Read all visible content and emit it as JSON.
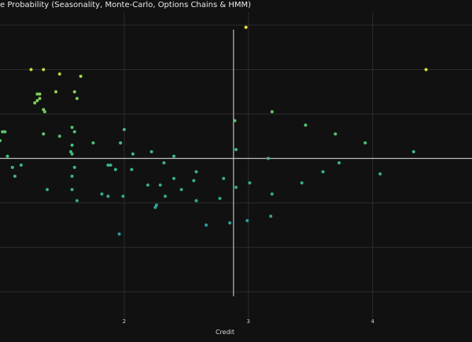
{
  "chart_data": {
    "type": "scatter",
    "title": "e Probability (Seasonality, Monte-Carlo, Options Chains & HMM)",
    "xlabel": "Credit",
    "ylabel": "",
    "xlim": [
      1.0,
      4.8
    ],
    "ylim": [
      -0.72,
      0.66
    ],
    "x_ticks": [
      2,
      3,
      4
    ],
    "grid": true,
    "legend": "none",
    "colorscale": [
      "#3a5fa0",
      "#2e9b9b",
      "#3fbf7f",
      "#9bd34a",
      "#f6e13a"
    ],
    "reference_lines": {
      "vertical_x": 2.88,
      "horizontal_y": 0.0
    },
    "points": [
      {
        "x": 2.98,
        "y": 0.59,
        "c": 1.0
      },
      {
        "x": 4.43,
        "y": 0.4,
        "c": 0.92
      },
      {
        "x": 1.35,
        "y": 0.4,
        "c": 0.85
      },
      {
        "x": 1.25,
        "y": 0.4,
        "c": 0.85
      },
      {
        "x": 1.48,
        "y": 0.38,
        "c": 0.8
      },
      {
        "x": 1.65,
        "y": 0.37,
        "c": 0.78
      },
      {
        "x": 1.32,
        "y": 0.29,
        "c": 0.7
      },
      {
        "x": 1.32,
        "y": 0.27,
        "c": 0.7
      },
      {
        "x": 1.3,
        "y": 0.26,
        "c": 0.68
      },
      {
        "x": 1.28,
        "y": 0.25,
        "c": 0.68
      },
      {
        "x": 1.35,
        "y": 0.22,
        "c": 0.66
      },
      {
        "x": 1.36,
        "y": 0.21,
        "c": 0.62
      },
      {
        "x": 1.45,
        "y": 0.3,
        "c": 0.72
      },
      {
        "x": 1.6,
        "y": 0.3,
        "c": 0.7
      },
      {
        "x": 1.62,
        "y": 0.27,
        "c": 0.68
      },
      {
        "x": 1.3,
        "y": 0.29,
        "c": 0.66
      },
      {
        "x": 1.35,
        "y": 0.11,
        "c": 0.6
      },
      {
        "x": 1.48,
        "y": 0.1,
        "c": 0.55
      },
      {
        "x": 1.6,
        "y": 0.12,
        "c": 0.55
      },
      {
        "x": 3.19,
        "y": 0.21,
        "c": 0.62
      },
      {
        "x": 2.89,
        "y": 0.17,
        "c": 0.58
      },
      {
        "x": 3.46,
        "y": 0.15,
        "c": 0.56
      },
      {
        "x": 3.7,
        "y": 0.11,
        "c": 0.55
      },
      {
        "x": 3.94,
        "y": 0.07,
        "c": 0.52
      },
      {
        "x": 4.33,
        "y": 0.03,
        "c": 0.48
      },
      {
        "x": 2.9,
        "y": 0.04,
        "c": 0.46
      },
      {
        "x": 3.16,
        "y": 0.0,
        "c": 0.44
      },
      {
        "x": 3.73,
        "y": -0.02,
        "c": 0.42
      },
      {
        "x": 3.6,
        "y": -0.06,
        "c": 0.4
      },
      {
        "x": 4.06,
        "y": -0.07,
        "c": 0.38
      },
      {
        "x": 1.02,
        "y": 0.12,
        "c": 0.58
      },
      {
        "x": 1.04,
        "y": 0.12,
        "c": 0.58
      },
      {
        "x": 1.0,
        "y": 0.08,
        "c": 0.56
      },
      {
        "x": 1.06,
        "y": 0.01,
        "c": 0.5
      },
      {
        "x": 1.1,
        "y": -0.04,
        "c": 0.45
      },
      {
        "x": 1.17,
        "y": -0.03,
        "c": 0.45
      },
      {
        "x": 1.12,
        "y": -0.08,
        "c": 0.42
      },
      {
        "x": 1.58,
        "y": 0.14,
        "c": 0.55
      },
      {
        "x": 1.58,
        "y": 0.06,
        "c": 0.52
      },
      {
        "x": 1.57,
        "y": 0.03,
        "c": 0.5
      },
      {
        "x": 1.58,
        "y": 0.02,
        "c": 0.48
      },
      {
        "x": 1.6,
        "y": -0.04,
        "c": 0.44
      },
      {
        "x": 1.58,
        "y": -0.08,
        "c": 0.42
      },
      {
        "x": 1.75,
        "y": 0.07,
        "c": 0.52
      },
      {
        "x": 1.97,
        "y": 0.07,
        "c": 0.5
      },
      {
        "x": 2.0,
        "y": 0.13,
        "c": 0.5
      },
      {
        "x": 2.07,
        "y": 0.02,
        "c": 0.46
      },
      {
        "x": 2.22,
        "y": 0.03,
        "c": 0.46
      },
      {
        "x": 2.4,
        "y": 0.01,
        "c": 0.45
      },
      {
        "x": 1.87,
        "y": -0.03,
        "c": 0.43
      },
      {
        "x": 1.89,
        "y": -0.03,
        "c": 0.43
      },
      {
        "x": 1.93,
        "y": -0.05,
        "c": 0.42
      },
      {
        "x": 2.06,
        "y": -0.05,
        "c": 0.42
      },
      {
        "x": 2.32,
        "y": -0.02,
        "c": 0.42
      },
      {
        "x": 2.58,
        "y": -0.06,
        "c": 0.4
      },
      {
        "x": 2.4,
        "y": -0.09,
        "c": 0.38
      },
      {
        "x": 2.56,
        "y": -0.1,
        "c": 0.38
      },
      {
        "x": 2.8,
        "y": -0.09,
        "c": 0.38
      },
      {
        "x": 3.01,
        "y": -0.11,
        "c": 0.36
      },
      {
        "x": 3.43,
        "y": -0.11,
        "c": 0.36
      },
      {
        "x": 2.19,
        "y": -0.12,
        "c": 0.36
      },
      {
        "x": 2.29,
        "y": -0.12,
        "c": 0.36
      },
      {
        "x": 2.46,
        "y": -0.14,
        "c": 0.35
      },
      {
        "x": 1.58,
        "y": -0.14,
        "c": 0.38
      },
      {
        "x": 1.38,
        "y": -0.14,
        "c": 0.38
      },
      {
        "x": 1.82,
        "y": -0.16,
        "c": 0.36
      },
      {
        "x": 1.87,
        "y": -0.17,
        "c": 0.35
      },
      {
        "x": 1.99,
        "y": -0.17,
        "c": 0.35
      },
      {
        "x": 2.33,
        "y": -0.17,
        "c": 0.34
      },
      {
        "x": 1.62,
        "y": -0.19,
        "c": 0.34
      },
      {
        "x": 2.58,
        "y": -0.19,
        "c": 0.33
      },
      {
        "x": 2.77,
        "y": -0.18,
        "c": 0.33
      },
      {
        "x": 2.9,
        "y": -0.13,
        "c": 0.35
      },
      {
        "x": 3.19,
        "y": -0.16,
        "c": 0.34
      },
      {
        "x": 2.26,
        "y": -0.21,
        "c": 0.32
      },
      {
        "x": 2.25,
        "y": -0.22,
        "c": 0.32
      },
      {
        "x": 3.18,
        "y": -0.26,
        "c": 0.3
      },
      {
        "x": 2.99,
        "y": -0.28,
        "c": 0.28
      },
      {
        "x": 2.85,
        "y": -0.29,
        "c": 0.28
      },
      {
        "x": 2.66,
        "y": -0.3,
        "c": 0.27
      },
      {
        "x": 1.96,
        "y": -0.34,
        "c": 0.25
      }
    ]
  }
}
